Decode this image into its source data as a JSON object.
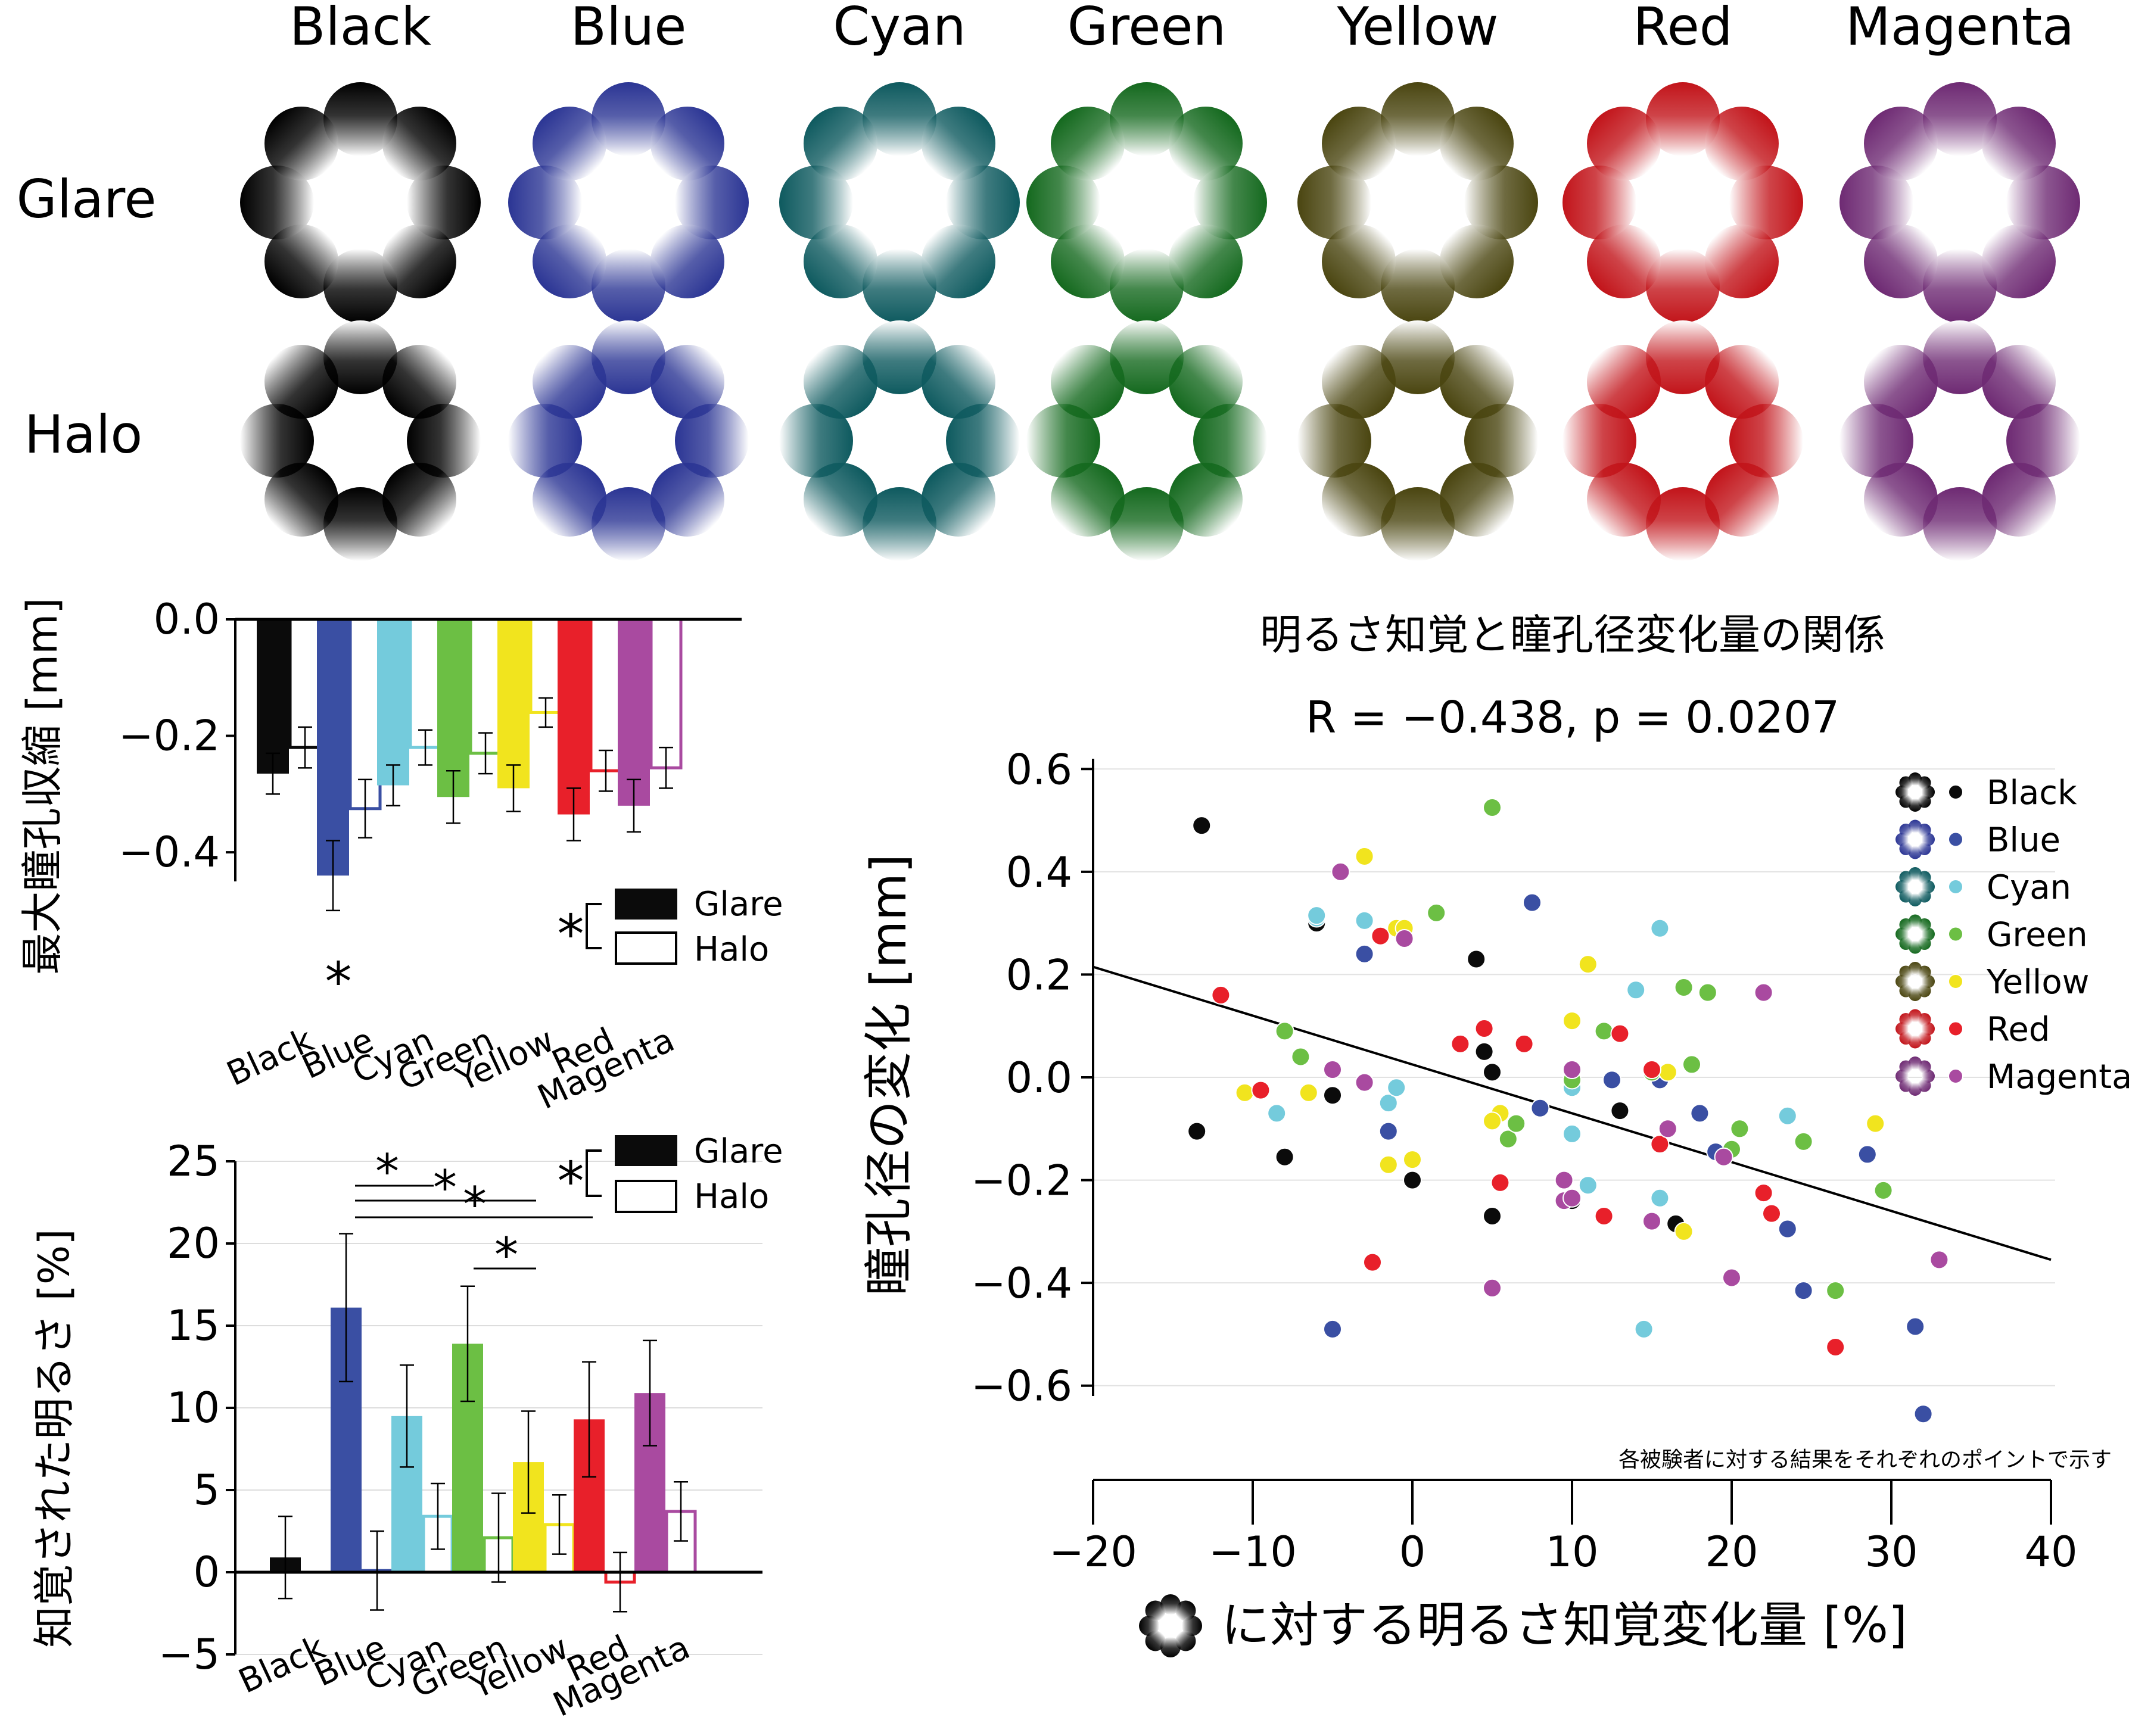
{
  "colors": [
    "Black",
    "Blue",
    "Cyan",
    "Green",
    "Yellow",
    "Red",
    "Magenta"
  ],
  "stimulus_types": [
    "Glare",
    "Halo"
  ],
  "color_hex": {
    "Black": "#0b0b0b",
    "Blue": "#3a4fa3",
    "Cyan": "#74cbdc",
    "Green": "#6cbf44",
    "Yellow": "#f1e41e",
    "Red": "#e8202a",
    "Magenta": "#a94aa0"
  },
  "stim_hex": {
    "Black": "#000000",
    "Blue": "#2b3594",
    "Cyan": "#0e5a5f",
    "Green": "#14691e",
    "Yellow": "#4a4510",
    "Red": "#c2141a",
    "Magenta": "#6e2a73"
  },
  "bar_labels": [
    "Black",
    "Blue",
    "Cyan",
    "Green",
    "Yellow",
    "Red",
    "Magenta"
  ],
  "legend": {
    "glare": "Glare",
    "halo": "Halo"
  },
  "sig_mark": "*",
  "chart_data": [
    {
      "type": "bar",
      "ylabel": "最大瞳孔収縮 [mm]",
      "categories": [
        "Black",
        "Blue",
        "Cyan",
        "Green",
        "Yellow",
        "Red",
        "Magenta"
      ],
      "series": [
        {
          "name": "Glare",
          "values": [
            -0.265,
            -0.44,
            -0.285,
            -0.305,
            -0.29,
            -0.335,
            -0.32
          ],
          "errors": [
            0.035,
            0.06,
            0.035,
            0.045,
            0.04,
            0.045,
            0.045
          ]
        },
        {
          "name": "Halo",
          "values": [
            -0.22,
            -0.325,
            -0.22,
            -0.23,
            -0.16,
            -0.26,
            -0.255
          ],
          "errors": [
            0.035,
            0.05,
            0.03,
            0.035,
            0.025,
            0.035,
            0.035
          ]
        }
      ],
      "ylim": [
        -0.45,
        0.0
      ],
      "yticks": [
        "0.0",
        "−0.2",
        "−0.4"
      ],
      "ytick_values": [
        0.0,
        -0.2,
        -0.4
      ],
      "annotations": [
        "*"
      ]
    },
    {
      "type": "bar",
      "ylabel": "知覚された明るさ [%]",
      "categories": [
        "Black",
        "Blue",
        "Cyan",
        "Green",
        "Yellow",
        "Red",
        "Magenta"
      ],
      "series": [
        {
          "name": "Glare",
          "values": [
            0.9,
            16.1,
            9.5,
            13.9,
            6.7,
            9.3,
            10.9
          ],
          "errors": [
            2.5,
            4.5,
            3.1,
            3.5,
            3.1,
            3.5,
            3.2
          ]
        },
        {
          "name": "Halo",
          "values": [
            null,
            0.1,
            3.4,
            2.1,
            2.9,
            -0.6,
            3.7
          ],
          "errors": [
            null,
            2.4,
            2.0,
            2.7,
            1.8,
            1.8,
            1.8
          ]
        }
      ],
      "ylim": [
        -5,
        25
      ],
      "yticks": [
        "25",
        "20",
        "15",
        "10",
        "5",
        "0",
        "−5"
      ],
      "ytick_values": [
        25,
        20,
        15,
        10,
        5,
        0,
        -5
      ],
      "annotations": [
        "*",
        "*",
        "*",
        "*"
      ]
    },
    {
      "type": "scatter",
      "title": "明るさ知覚と瞳孔径変化量の関係",
      "subtitle": "R = −0.438, p = 0.0207",
      "xlabel": "に対する明るさ知覚変化量 [%]",
      "ylabel": "瞳孔径の変化 [mm]",
      "note": "各被験者に対する結果をそれぞれのポイントで示す",
      "xlim": [
        -20,
        40
      ],
      "ylim": [
        -0.62,
        0.62
      ],
      "xticks": [
        "−20",
        "−10",
        "0",
        "10",
        "20",
        "30",
        "40"
      ],
      "xtick_values": [
        -20,
        -10,
        0,
        10,
        20,
        30,
        40
      ],
      "yticks": [
        "0.6",
        "0.4",
        "0.2",
        "0.0",
        "−0.2",
        "−0.4",
        "−0.6"
      ],
      "ytick_values": [
        0.6,
        0.4,
        0.2,
        0.0,
        -0.2,
        -0.4,
        -0.6
      ],
      "grid": true,
      "legend_position": "top-right",
      "trendline": {
        "x": [
          -20,
          40
        ],
        "y": [
          0.215,
          -0.355
        ]
      },
      "series": [
        {
          "name": "Black",
          "x": [
            -13.2,
            -13.5,
            -8,
            -6,
            -5,
            -1,
            0,
            4,
            4.5,
            5,
            5,
            10,
            13,
            16.5
          ],
          "y": [
            0.49,
            -0.105,
            -0.155,
            0.3,
            -0.035,
            -0.02,
            -0.2,
            0.23,
            0.05,
            0.01,
            -0.27,
            -0.24,
            -0.065,
            -0.285
          ]
        },
        {
          "name": "Blue",
          "x": [
            -5,
            -3,
            -1.5,
            7.5,
            8,
            12.5,
            15.5,
            18,
            19,
            23.5,
            24.5,
            28.5,
            31.5,
            32
          ],
          "y": [
            -0.49,
            0.24,
            -0.105,
            0.34,
            -0.06,
            -0.005,
            -0.005,
            -0.07,
            -0.145,
            -0.295,
            -0.415,
            -0.15,
            -0.485,
            -0.655
          ]
        },
        {
          "name": "Cyan",
          "x": [
            -6,
            -8.5,
            -6,
            -3,
            -1.5,
            -1,
            10,
            10,
            10,
            11,
            14,
            14.5,
            15.5,
            15.5,
            16,
            23.5
          ],
          "y": [
            0.31,
            -0.07,
            0.315,
            0.305,
            -0.05,
            -0.02,
            -0.01,
            -0.11,
            -0.02,
            -0.21,
            0.17,
            -0.49,
            0.29,
            -0.235,
            0.01,
            -0.075
          ]
        },
        {
          "name": "Green",
          "x": [
            -8,
            -7,
            1.5,
            5,
            6,
            6.5,
            10,
            12,
            15,
            17,
            17.5,
            18.5,
            20,
            20.5,
            24.5,
            26.5,
            29.5
          ],
          "y": [
            0.09,
            0.04,
            0.32,
            0.525,
            -0.12,
            -0.09,
            -0.005,
            0.09,
            0.01,
            0.175,
            0.025,
            0.165,
            -0.14,
            -0.1,
            -0.125,
            -0.415,
            -0.22
          ]
        },
        {
          "name": "Yellow",
          "x": [
            -10.5,
            -6.5,
            -3,
            -1.5,
            -1,
            -0.5,
            0,
            5.5,
            5,
            10,
            11,
            16,
            17,
            29
          ],
          "y": [
            -0.03,
            -0.03,
            0.43,
            -0.17,
            0.29,
            0.29,
            -0.16,
            -0.07,
            -0.085,
            0.11,
            0.22,
            0.01,
            -0.3,
            -0.09
          ]
        },
        {
          "name": "Red",
          "x": [
            -12,
            -9.5,
            -2.5,
            -2,
            3,
            4.5,
            5.5,
            7,
            12,
            13,
            15,
            15.5,
            22,
            22.5,
            26.5
          ],
          "y": [
            0.16,
            -0.025,
            -0.36,
            0.275,
            0.065,
            0.095,
            -0.205,
            0.065,
            -0.27,
            0.085,
            0.015,
            -0.13,
            -0.225,
            -0.265,
            -0.525
          ]
        },
        {
          "name": "Magenta",
          "x": [
            -4.5,
            -5,
            -3,
            -0.5,
            5,
            9.5,
            9.5,
            10,
            10,
            15,
            16,
            19.5,
            20,
            22,
            33
          ],
          "y": [
            0.4,
            0.015,
            -0.01,
            0.27,
            -0.41,
            -0.2,
            -0.24,
            -0.235,
            0.015,
            -0.28,
            -0.1,
            -0.155,
            -0.39,
            0.165,
            -0.355
          ]
        }
      ]
    }
  ]
}
